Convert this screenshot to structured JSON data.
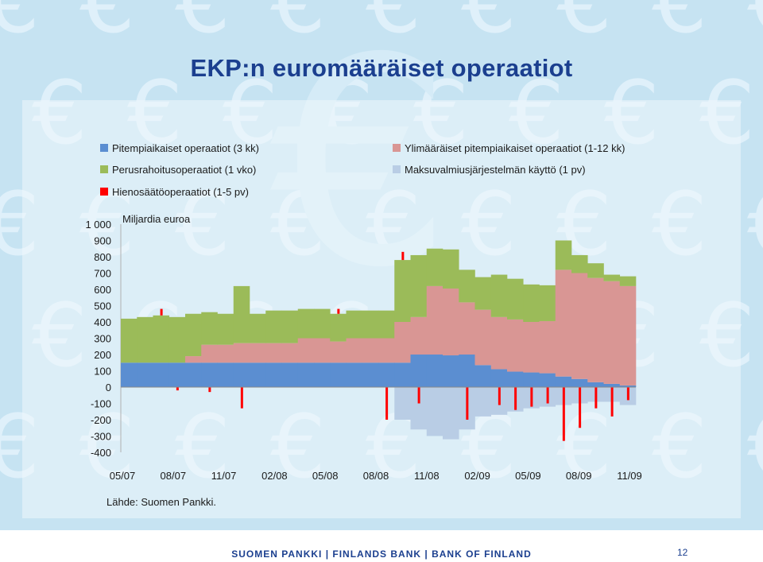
{
  "title": "EKP:n euromääräiset operaatiot",
  "source": "Lähde: Suomen Pankki.",
  "footer": {
    "text": "SUOMEN PANKKI | FINLANDS BANK | BANK OF FINLAND",
    "page_number": "12"
  },
  "colors": {
    "background": "#c6e3f2",
    "title": "#1b3f8f",
    "ltro": "#5b8ed1",
    "mro": "#9bbb59",
    "fine_tuning": "#ff0000",
    "additional_ltro": "#d99694",
    "marginal_lending": "#b9cde5"
  },
  "chart_data": {
    "type": "area",
    "ylabel": "Miljardia euroa",
    "ylim": [
      -400,
      1000
    ],
    "yticks": [
      "1 000",
      "900",
      "800",
      "700",
      "600",
      "500",
      "400",
      "300",
      "200",
      "100",
      "0",
      "-100",
      "-200",
      "-300",
      "-400"
    ],
    "xticks": [
      "05/07",
      "08/07",
      "11/07",
      "02/08",
      "05/08",
      "08/08",
      "11/08",
      "02/09",
      "05/09",
      "08/09",
      "11/09"
    ],
    "legend": [
      {
        "key": "ltro",
        "label": "Pitempiaikaiset operaatiot (3 kk)"
      },
      {
        "key": "mro",
        "label": "Perusrahoitusoperaatiot (1 vko)"
      },
      {
        "key": "fine_tuning",
        "label": "Hienosäätöoperaatiot (1-5 pv)"
      },
      {
        "key": "additional_ltro",
        "label": "Ylimääräiset pitempiaikaiset operaatiot (1-12 kk)"
      },
      {
        "key": "marginal_lending",
        "label": "Maksuvalmiusjärjestelmän käyttö (1 pv)"
      }
    ],
    "x": [
      "05/07",
      "06/07",
      "07/07",
      "08/07",
      "09/07",
      "10/07",
      "11/07",
      "12/07",
      "01/08",
      "02/08",
      "03/08",
      "04/08",
      "05/08",
      "06/08",
      "07/08",
      "08/08",
      "09/08",
      "10/08",
      "11/08",
      "12/08",
      "01/09",
      "02/09",
      "03/09",
      "04/09",
      "05/09",
      "06/09",
      "07/09",
      "08/09",
      "09/09",
      "10/09",
      "11/09",
      "12/09"
    ],
    "series": [
      {
        "name": "Pitempiaikaiset operaatiot (3 kk)",
        "key": "ltro",
        "values": [
          150,
          150,
          150,
          150,
          150,
          150,
          150,
          150,
          150,
          150,
          150,
          150,
          150,
          150,
          150,
          150,
          150,
          150,
          200,
          200,
          195,
          200,
          135,
          110,
          95,
          90,
          85,
          65,
          50,
          30,
          20,
          10
        ]
      },
      {
        "name": "Ylimääräiset pitempiaikaiset operaatiot (1-12 kk)",
        "key": "additional_ltro",
        "values": [
          0,
          0,
          0,
          0,
          40,
          110,
          110,
          120,
          120,
          120,
          120,
          150,
          150,
          130,
          150,
          150,
          150,
          250,
          230,
          420,
          410,
          320,
          340,
          320,
          320,
          310,
          320,
          655,
          650,
          640,
          630,
          610
        ]
      },
      {
        "name": "Perusrahoitusoperaatiot (1 vko)",
        "key": "mro",
        "values": [
          270,
          280,
          290,
          280,
          260,
          200,
          190,
          350,
          180,
          200,
          200,
          180,
          180,
          170,
          170,
          170,
          170,
          380,
          380,
          230,
          240,
          200,
          200,
          260,
          250,
          230,
          220,
          180,
          110,
          90,
          40,
          60
        ]
      },
      {
        "name": "Hienosäätöoperaatiot (1-5 pv)",
        "key": "fine_tuning",
        "values": [
          0,
          0,
          40,
          -20,
          0,
          -30,
          0,
          -130,
          0,
          0,
          0,
          0,
          0,
          30,
          0,
          0,
          -200,
          50,
          -100,
          0,
          0,
          -200,
          0,
          -110,
          -140,
          -120,
          -100,
          -330,
          -250,
          -130,
          -180,
          -80
        ]
      },
      {
        "name": "Maksuvalmiusjärjestelmän käyttö (1 pv)",
        "key": "marginal_lending",
        "values": [
          0,
          0,
          0,
          0,
          0,
          0,
          0,
          0,
          0,
          0,
          0,
          0,
          0,
          0,
          0,
          0,
          0,
          -200,
          -260,
          -300,
          -320,
          -260,
          -180,
          -170,
          -150,
          -130,
          -120,
          -110,
          -100,
          -90,
          -90,
          -110
        ]
      }
    ],
    "grid": false,
    "legend_position": "top"
  }
}
